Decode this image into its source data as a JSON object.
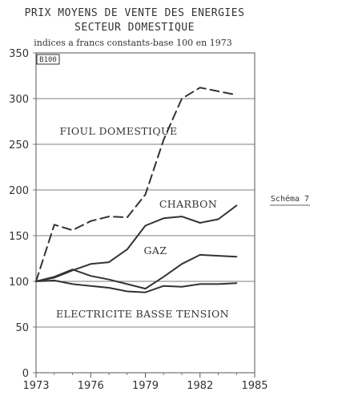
{
  "chart_data": {
    "type": "line",
    "title": "PRIX MOYENS DE VENTE DES ENERGIES",
    "subtitle": "SECTEUR DOMESTIQUE",
    "note": "indices a francs constants-base 100 en 1973",
    "box_label": "B100",
    "side_label": "Schéma 7",
    "xlabel": "",
    "ylabel": "",
    "xlim": [
      1973,
      1985
    ],
    "ylim": [
      0,
      350
    ],
    "x_ticks": [
      1973,
      1976,
      1979,
      1982,
      1985
    ],
    "y_ticks": [
      0,
      50,
      100,
      150,
      200,
      250,
      300,
      350
    ],
    "grid": "horizontal",
    "series": [
      {
        "name": "FIOUL DOMESTIQUE",
        "style": "dashed",
        "x": [
          1973,
          1974,
          1975,
          1976,
          1977,
          1978,
          1979,
          1980,
          1981,
          1982,
          1983,
          1984
        ],
        "y": [
          100,
          162,
          156,
          166,
          171,
          170,
          195,
          255,
          300,
          312,
          308,
          304
        ]
      },
      {
        "name": "CHARBON",
        "style": "solid",
        "x": [
          1973,
          1974,
          1975,
          1976,
          1977,
          1978,
          1979,
          1980,
          1981,
          1982,
          1983,
          1984
        ],
        "y": [
          100,
          104,
          112,
          119,
          121,
          135,
          161,
          169,
          171,
          164,
          168,
          183
        ]
      },
      {
        "name": "GAZ",
        "style": "solid",
        "x": [
          1973,
          1974,
          1975,
          1976,
          1977,
          1978,
          1979,
          1980,
          1981,
          1982,
          1983,
          1984
        ],
        "y": [
          100,
          105,
          113,
          106,
          102,
          97,
          92,
          105,
          119,
          129,
          128,
          127
        ]
      },
      {
        "name": "ELECTRICITE BASSE TENSION",
        "style": "solid",
        "x": [
          1973,
          1974,
          1975,
          1976,
          1977,
          1978,
          1979,
          1980,
          1981,
          1982,
          1983,
          1984
        ],
        "y": [
          100,
          101,
          97,
          95,
          93,
          89,
          88,
          95,
          94,
          97,
          97,
          98
        ]
      }
    ],
    "colors": {
      "line": "#333333",
      "grid": "#555555",
      "text": "#333333"
    }
  }
}
